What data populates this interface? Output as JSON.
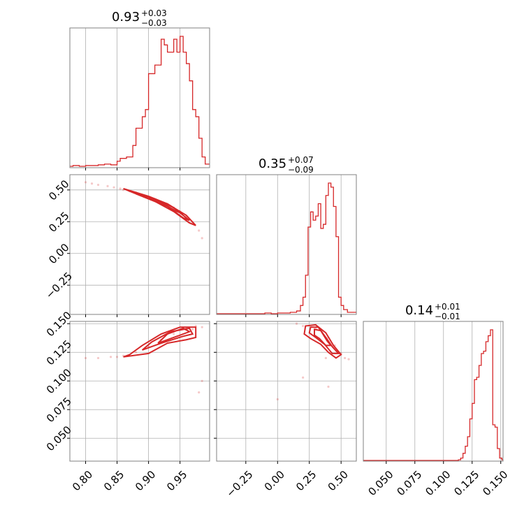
{
  "colors": {
    "series": "#d62728",
    "grid": "#b0b0b0",
    "frame": "#808080"
  },
  "chart_data": {
    "type": "corner",
    "grid": true,
    "parameters": [
      {
        "title": {
          "value": "0.93",
          "upper": "+0.03",
          "lower": "−0.03"
        },
        "range": [
          0.775,
          0.997
        ],
        "ticks": [
          0.8,
          0.85,
          0.9,
          0.95
        ],
        "tick_labels": [
          "0.80",
          "0.85",
          "0.90",
          "0.95"
        ],
        "hist": {
          "x": [
            0.775,
            0.78,
            0.79,
            0.8,
            0.81,
            0.82,
            0.83,
            0.84,
            0.85,
            0.855,
            0.86,
            0.865,
            0.87,
            0.875,
            0.88,
            0.885,
            0.89,
            0.895,
            0.9,
            0.905,
            0.91,
            0.915,
            0.92,
            0.925,
            0.93,
            0.935,
            0.94,
            0.945,
            0.95,
            0.955,
            0.96,
            0.965,
            0.97,
            0.975,
            0.98,
            0.985,
            0.99
          ],
          "counts": [
            0.5,
            1,
            0.5,
            1,
            1,
            1.5,
            2,
            1.5,
            4,
            6,
            6,
            7,
            7,
            15,
            27,
            27,
            35,
            40,
            65,
            65,
            71,
            71,
            89,
            85,
            80,
            80,
            89,
            80,
            91,
            80,
            72,
            60,
            40,
            35,
            20,
            7,
            2
          ]
        }
      },
      {
        "title": {
          "value": "0.35",
          "upper": "+0.07",
          "lower": "−0.09"
        },
        "range": [
          -0.48,
          0.62
        ],
        "ticks": [
          -0.25,
          0.0,
          0.25,
          0.5
        ],
        "tick_labels": [
          "−0.25",
          "0.00",
          "0.25",
          "0.50"
        ],
        "hist": {
          "x": [
            -0.48,
            -0.1,
            -0.05,
            0.0,
            0.05,
            0.1,
            0.15,
            0.18,
            0.2,
            0.22,
            0.24,
            0.26,
            0.28,
            0.3,
            0.32,
            0.34,
            0.36,
            0.38,
            0.4,
            0.42,
            0.44,
            0.46,
            0.48,
            0.5,
            0.52,
            0.55,
            0.58
          ],
          "counts": [
            0,
            0.5,
            0,
            0.5,
            0.5,
            1,
            2,
            6,
            12,
            28,
            63,
            74,
            68,
            71,
            80,
            62,
            65,
            86,
            95,
            92,
            78,
            56,
            12,
            6,
            3,
            1,
            1
          ]
        }
      },
      {
        "title": {
          "value": "0.14",
          "upper": "+0.01",
          "lower": "−0.01"
        },
        "range": [
          0.03,
          0.152
        ],
        "ticks": [
          0.05,
          0.075,
          0.1,
          0.125,
          0.15
        ],
        "tick_labels": [
          "0.050",
          "0.075",
          "0.100",
          "0.125",
          "0.150"
        ],
        "hist": {
          "x": [
            0.03,
            0.113,
            0.115,
            0.117,
            0.119,
            0.121,
            0.123,
            0.125,
            0.127,
            0.129,
            0.131,
            0.133,
            0.135,
            0.137,
            0.139,
            0.141,
            0.143,
            0.145,
            0.147,
            0.149,
            0.151
          ],
          "counts": [
            0,
            0.5,
            2,
            6,
            12,
            20,
            35,
            48,
            68,
            70,
            80,
            90,
            92,
            100,
            105,
            110,
            30,
            28,
            10,
            2,
            0.5
          ]
        }
      }
    ],
    "pairs": [
      {
        "x_param": 0,
        "y_param": 1,
        "scatter": [
          [
            0.8,
            0.56
          ],
          [
            0.81,
            0.55
          ],
          [
            0.82,
            0.54
          ],
          [
            0.835,
            0.53
          ],
          [
            0.845,
            0.52
          ],
          [
            0.855,
            0.51
          ],
          [
            0.86,
            0.5
          ],
          [
            0.87,
            0.49
          ],
          [
            0.88,
            0.48
          ],
          [
            0.89,
            0.46
          ],
          [
            0.9,
            0.44
          ],
          [
            0.91,
            0.42
          ],
          [
            0.92,
            0.4
          ],
          [
            0.93,
            0.38
          ],
          [
            0.94,
            0.36
          ],
          [
            0.95,
            0.33
          ],
          [
            0.96,
            0.29
          ],
          [
            0.97,
            0.24
          ],
          [
            0.98,
            0.18
          ],
          [
            0.985,
            0.12
          ]
        ],
        "contours": [
          [
            [
              0.86,
              0.51
            ],
            [
              0.9,
              0.45
            ],
            [
              0.93,
              0.39
            ],
            [
              0.96,
              0.3
            ],
            [
              0.975,
              0.22
            ],
            [
              0.965,
              0.24
            ],
            [
              0.94,
              0.33
            ],
            [
              0.91,
              0.41
            ],
            [
              0.88,
              0.47
            ],
            [
              0.86,
              0.51
            ]
          ],
          [
            [
              0.88,
              0.47
            ],
            [
              0.91,
              0.43
            ],
            [
              0.94,
              0.36
            ],
            [
              0.965,
              0.26
            ],
            [
              0.955,
              0.28
            ],
            [
              0.93,
              0.37
            ],
            [
              0.9,
              0.43
            ],
            [
              0.88,
              0.47
            ]
          ],
          [
            [
              0.9,
              0.44
            ],
            [
              0.93,
              0.39
            ],
            [
              0.955,
              0.31
            ],
            [
              0.945,
              0.33
            ],
            [
              0.92,
              0.4
            ],
            [
              0.9,
              0.44
            ]
          ]
        ]
      },
      {
        "x_param": 0,
        "y_param": 2,
        "scatter": [
          [
            0.8,
            0.12
          ],
          [
            0.82,
            0.12
          ],
          [
            0.84,
            0.121
          ],
          [
            0.85,
            0.121
          ],
          [
            0.86,
            0.122
          ],
          [
            0.88,
            0.125
          ],
          [
            0.9,
            0.13
          ],
          [
            0.92,
            0.136
          ],
          [
            0.94,
            0.141
          ],
          [
            0.96,
            0.146
          ],
          [
            0.975,
            0.148
          ],
          [
            0.985,
            0.147
          ],
          [
            0.985,
            0.1
          ],
          [
            0.98,
            0.09
          ],
          [
            0.97,
            0.145
          ]
        ],
        "contours": [
          [
            [
              0.86,
              0.121
            ],
            [
              0.9,
              0.124
            ],
            [
              0.93,
              0.133
            ],
            [
              0.96,
              0.136
            ],
            [
              0.975,
              0.138
            ],
            [
              0.975,
              0.147
            ],
            [
              0.95,
              0.147
            ],
            [
              0.92,
              0.141
            ],
            [
              0.89,
              0.131
            ],
            [
              0.87,
              0.123
            ],
            [
              0.86,
              0.121
            ]
          ],
          [
            [
              0.89,
              0.127
            ],
            [
              0.92,
              0.133
            ],
            [
              0.955,
              0.139
            ],
            [
              0.97,
              0.141
            ],
            [
              0.965,
              0.146
            ],
            [
              0.935,
              0.143
            ],
            [
              0.905,
              0.134
            ],
            [
              0.89,
              0.127
            ]
          ],
          [
            [
              0.915,
              0.133
            ],
            [
              0.945,
              0.139
            ],
            [
              0.965,
              0.143
            ],
            [
              0.955,
              0.146
            ],
            [
              0.93,
              0.141
            ],
            [
              0.915,
              0.133
            ]
          ]
        ]
      },
      {
        "x_param": 1,
        "y_param": 2,
        "scatter": [
          [
            0.15,
            0.15
          ],
          [
            0.2,
            0.148
          ],
          [
            0.3,
            0.146
          ],
          [
            0.35,
            0.143
          ],
          [
            0.4,
            0.138
          ],
          [
            0.45,
            0.131
          ],
          [
            0.5,
            0.124
          ],
          [
            0.53,
            0.12
          ],
          [
            0.56,
            0.119
          ],
          [
            0.2,
            0.103
          ],
          [
            0.4,
            0.095
          ],
          [
            0.0,
            0.084
          ],
          [
            0.38,
            0.12
          ]
        ],
        "contours": [
          [
            [
              0.21,
              0.141
            ],
            [
              0.22,
              0.148
            ],
            [
              0.3,
              0.149
            ],
            [
              0.38,
              0.142
            ],
            [
              0.44,
              0.131
            ],
            [
              0.5,
              0.123
            ],
            [
              0.46,
              0.12
            ],
            [
              0.4,
              0.125
            ],
            [
              0.34,
              0.132
            ],
            [
              0.26,
              0.137
            ],
            [
              0.21,
              0.141
            ]
          ],
          [
            [
              0.25,
              0.142
            ],
            [
              0.26,
              0.147
            ],
            [
              0.32,
              0.147
            ],
            [
              0.38,
              0.138
            ],
            [
              0.43,
              0.13
            ],
            [
              0.48,
              0.124
            ],
            [
              0.43,
              0.124
            ],
            [
              0.37,
              0.132
            ],
            [
              0.3,
              0.138
            ],
            [
              0.25,
              0.142
            ]
          ],
          [
            [
              0.29,
              0.14
            ],
            [
              0.29,
              0.145
            ],
            [
              0.34,
              0.144
            ],
            [
              0.39,
              0.135
            ],
            [
              0.42,
              0.131
            ],
            [
              0.38,
              0.131
            ],
            [
              0.33,
              0.137
            ],
            [
              0.29,
              0.14
            ]
          ]
        ]
      }
    ]
  }
}
